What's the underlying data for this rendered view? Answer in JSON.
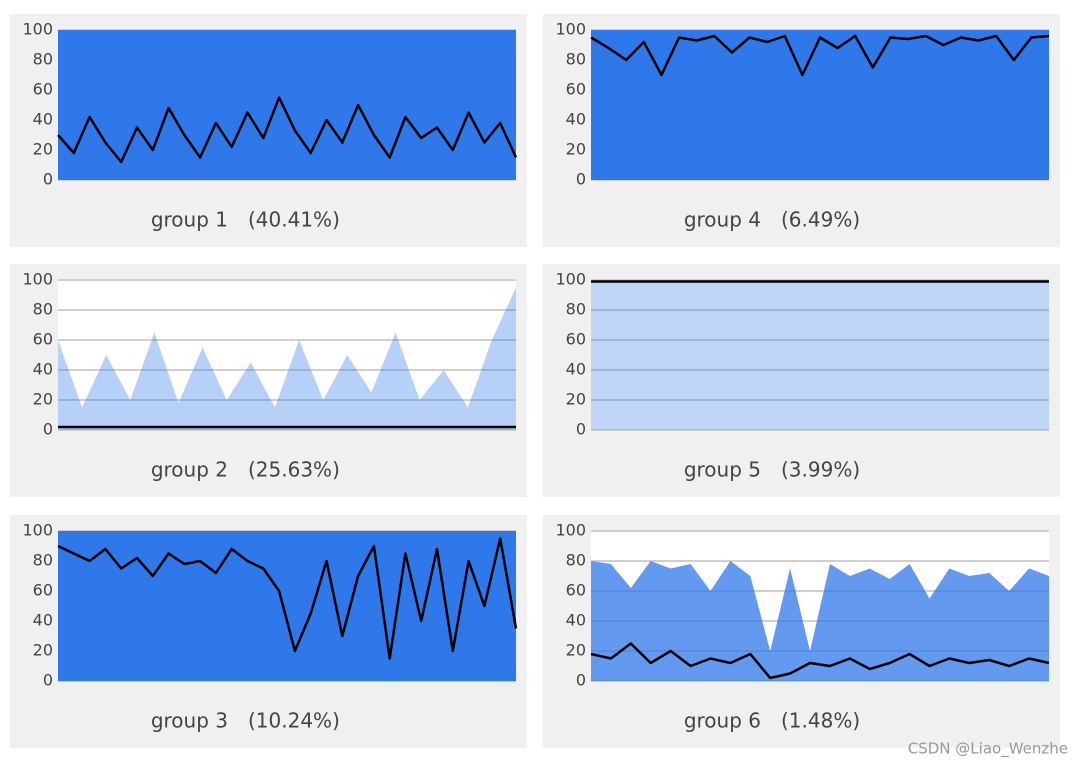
{
  "chart_data": [
    {
      "type": "line",
      "title": "group 1",
      "subtitle": "(40.41%)",
      "ylim": [
        0,
        100
      ],
      "yticks": [
        0,
        20,
        40,
        60,
        80,
        100
      ],
      "grid": true,
      "series": [
        {
          "color": "#2f78e9",
          "area": true,
          "opacity": 1,
          "values": [
            100,
            100
          ]
        },
        {
          "color": "#000000",
          "values": [
            30,
            18,
            42,
            25,
            12,
            35,
            20,
            48,
            30,
            15,
            38,
            22,
            45,
            28,
            55,
            33,
            18,
            40,
            25,
            50,
            30,
            15,
            42,
            28,
            35,
            20,
            45,
            25,
            38,
            15
          ]
        }
      ]
    },
    {
      "type": "line",
      "title": "group 4",
      "subtitle": "(6.49%)",
      "ylim": [
        0,
        100
      ],
      "yticks": [
        0,
        20,
        40,
        60,
        80,
        100
      ],
      "grid": true,
      "series": [
        {
          "color": "#2f78e9",
          "area": true,
          "opacity": 1,
          "values": [
            100,
            100
          ]
        },
        {
          "color": "#000000",
          "values": [
            95,
            88,
            80,
            92,
            70,
            95,
            93,
            96,
            85,
            95,
            92,
            96,
            70,
            95,
            88,
            96,
            75,
            95,
            94,
            96,
            90,
            95,
            93,
            96,
            80,
            95,
            96
          ]
        }
      ]
    },
    {
      "type": "line",
      "title": "group 2",
      "subtitle": "(25.63%)",
      "ylim": [
        0,
        100
      ],
      "yticks": [
        0,
        20,
        40,
        60,
        80,
        100
      ],
      "grid": true,
      "series": [
        {
          "color": "#2f78e9",
          "area": true,
          "opacity": 0.35,
          "values": [
            60,
            15,
            50,
            20,
            65,
            18,
            55,
            20,
            45,
            15,
            60,
            20,
            50,
            25,
            65,
            20,
            40,
            15,
            60,
            95
          ]
        },
        {
          "color": "#000000",
          "values": [
            2,
            2,
            2,
            2
          ]
        }
      ]
    },
    {
      "type": "line",
      "title": "group 5",
      "subtitle": "(3.99%)",
      "ylim": [
        0,
        100
      ],
      "yticks": [
        0,
        20,
        40,
        60,
        80,
        100
      ],
      "grid": true,
      "series": [
        {
          "color": "#2f78e9",
          "area": true,
          "opacity": 0.3,
          "values": [
            100,
            100
          ]
        },
        {
          "color": "#000000",
          "values": [
            99,
            99,
            99,
            99
          ]
        }
      ]
    },
    {
      "type": "line",
      "title": "group 3",
      "subtitle": "(10.24%)",
      "ylim": [
        0,
        100
      ],
      "yticks": [
        0,
        20,
        40,
        60,
        80,
        100
      ],
      "grid": true,
      "series": [
        {
          "color": "#2f78e9",
          "area": true,
          "opacity": 1,
          "values": [
            100,
            100
          ]
        },
        {
          "color": "#000000",
          "values": [
            90,
            85,
            80,
            88,
            75,
            82,
            70,
            85,
            78,
            80,
            72,
            88,
            80,
            75,
            60,
            20,
            45,
            80,
            30,
            70,
            90,
            15,
            85,
            40,
            88,
            20,
            80,
            50,
            95,
            35
          ]
        }
      ]
    },
    {
      "type": "line",
      "title": "group 6",
      "subtitle": "(1.48%)",
      "ylim": [
        0,
        100
      ],
      "yticks": [
        0,
        20,
        40,
        60,
        80,
        100
      ],
      "grid": true,
      "series": [
        {
          "color": "#2f78e9",
          "area": true,
          "opacity": 0.75,
          "values": [
            80,
            78,
            62,
            80,
            75,
            78,
            60,
            80,
            70,
            20,
            75,
            20,
            78,
            70,
            75,
            68,
            78,
            55,
            75,
            70,
            72,
            60,
            75,
            70
          ]
        },
        {
          "color": "#000000",
          "values": [
            18,
            15,
            25,
            12,
            20,
            10,
            15,
            12,
            18,
            2,
            5,
            12,
            10,
            15,
            8,
            12,
            18,
            10,
            15,
            12,
            14,
            10,
            15,
            12
          ]
        }
      ]
    }
  ],
  "watermark": "CSDN @Liao_Wenzhe"
}
